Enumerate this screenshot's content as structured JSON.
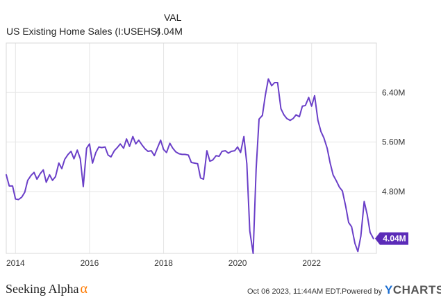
{
  "legend": {
    "header": "VAL",
    "series_name": "US Existing Home Sales (I:USEHS)",
    "series_value": "4.04M"
  },
  "footer": {
    "brand": "Seeking Alpha",
    "brand_mark": "α",
    "date": "Oct 06 2023, 11:44AM EDT.",
    "powered_by": "Powered by",
    "provider_mark": "Y",
    "provider": "CHARTS"
  },
  "colors": {
    "line": "#6a3fc8",
    "grid": "#e6e6e6",
    "value_tag_bg": "#5b2bb8"
  },
  "chart_data": {
    "type": "line",
    "y_axis_position": "right",
    "grid": true,
    "ylim": [
      3.8,
      7.2
    ],
    "xlim": [
      2013.75,
      2023.75
    ],
    "y_ticks": [
      {
        "value": 4.8,
        "label": "4.80M"
      },
      {
        "value": 5.6,
        "label": "5.60M"
      },
      {
        "value": 6.4,
        "label": "6.40M"
      }
    ],
    "x_ticks": [
      {
        "value": 2014,
        "label": "2014"
      },
      {
        "value": 2016,
        "label": "2016"
      },
      {
        "value": 2018,
        "label": "2018"
      },
      {
        "value": 2020,
        "label": "2020"
      },
      {
        "value": 2022,
        "label": "2022"
      }
    ],
    "last_value_label": "4.04M",
    "series": [
      {
        "name": "US Existing Home Sales (I:USEHS)",
        "x": [
          2013.75,
          2013.83,
          2013.92,
          2014.0,
          2014.08,
          2014.17,
          2014.25,
          2014.33,
          2014.42,
          2014.5,
          2014.58,
          2014.67,
          2014.75,
          2014.83,
          2014.92,
          2015.0,
          2015.08,
          2015.17,
          2015.25,
          2015.33,
          2015.42,
          2015.5,
          2015.58,
          2015.67,
          2015.75,
          2015.83,
          2015.92,
          2016.0,
          2016.08,
          2016.17,
          2016.25,
          2016.33,
          2016.42,
          2016.5,
          2016.58,
          2016.67,
          2016.75,
          2016.83,
          2016.92,
          2017.0,
          2017.08,
          2017.17,
          2017.25,
          2017.33,
          2017.42,
          2017.5,
          2017.58,
          2017.67,
          2017.75,
          2017.83,
          2017.92,
          2018.0,
          2018.08,
          2018.17,
          2018.25,
          2018.33,
          2018.42,
          2018.5,
          2018.58,
          2018.67,
          2018.75,
          2018.83,
          2018.92,
          2019.0,
          2019.08,
          2019.17,
          2019.25,
          2019.33,
          2019.42,
          2019.5,
          2019.58,
          2019.67,
          2019.75,
          2019.83,
          2019.92,
          2020.0,
          2020.08,
          2020.17,
          2020.25,
          2020.33,
          2020.42,
          2020.5,
          2020.58,
          2020.67,
          2020.75,
          2020.83,
          2020.92,
          2021.0,
          2021.08,
          2021.17,
          2021.25,
          2021.33,
          2021.42,
          2021.5,
          2021.58,
          2021.67,
          2021.75,
          2021.83,
          2021.92,
          2022.0,
          2022.08,
          2022.17,
          2022.25,
          2022.33,
          2022.42,
          2022.5,
          2022.58,
          2022.67,
          2022.75,
          2022.83,
          2022.92,
          2023.0,
          2023.08,
          2023.17,
          2023.25,
          2023.33,
          2023.42,
          2023.5,
          2023.58,
          2023.67
        ],
        "values": [
          5.07,
          4.89,
          4.89,
          4.68,
          4.67,
          4.71,
          4.79,
          4.98,
          5.06,
          5.11,
          5.0,
          5.09,
          5.15,
          4.95,
          5.07,
          4.98,
          5.04,
          5.26,
          5.17,
          5.32,
          5.4,
          5.45,
          5.33,
          5.47,
          5.33,
          4.88,
          5.5,
          5.57,
          5.26,
          5.43,
          5.52,
          5.51,
          5.52,
          5.39,
          5.36,
          5.46,
          5.51,
          5.57,
          5.5,
          5.65,
          5.53,
          5.69,
          5.57,
          5.63,
          5.55,
          5.49,
          5.45,
          5.46,
          5.38,
          5.5,
          5.63,
          5.48,
          5.43,
          5.58,
          5.5,
          5.44,
          5.41,
          5.4,
          5.4,
          5.39,
          5.27,
          5.26,
          5.25,
          5.02,
          5.0,
          5.46,
          5.29,
          5.31,
          5.38,
          5.37,
          5.45,
          5.46,
          5.42,
          5.45,
          5.46,
          5.52,
          5.43,
          5.69,
          5.25,
          4.16,
          3.8,
          5.16,
          5.97,
          6.03,
          6.36,
          6.62,
          6.51,
          6.56,
          6.56,
          6.14,
          6.04,
          5.98,
          5.95,
          5.98,
          6.04,
          6.01,
          6.18,
          6.19,
          6.32,
          6.18,
          6.35,
          5.95,
          5.77,
          5.67,
          5.5,
          5.26,
          5.07,
          4.97,
          4.87,
          4.81,
          4.56,
          4.3,
          4.23,
          3.96,
          3.83,
          4.08,
          4.64,
          4.43,
          4.14,
          4.04
        ]
      }
    ]
  }
}
